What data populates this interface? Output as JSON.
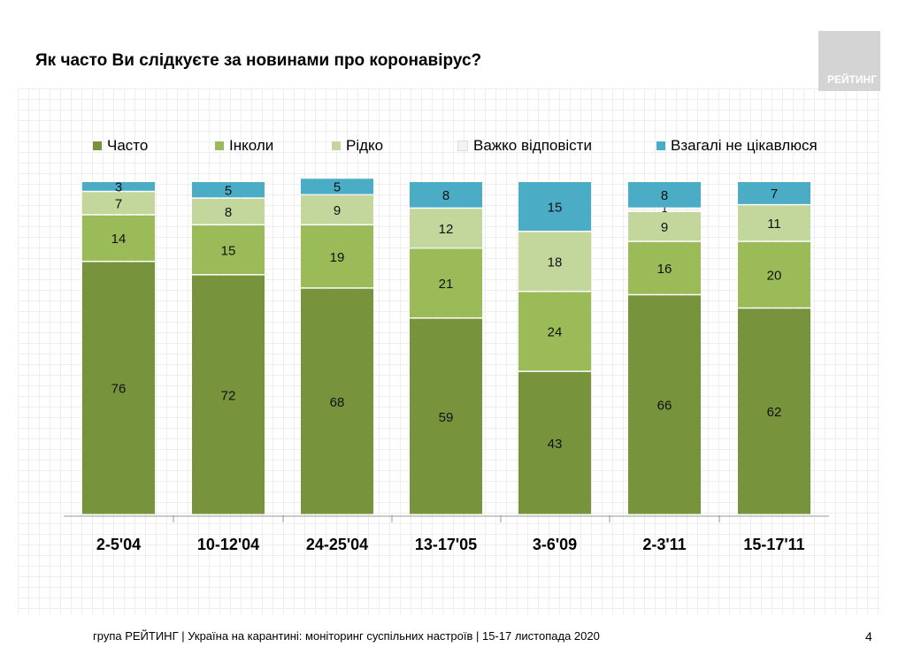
{
  "title": "Як часто Ви слідкуєте за новинами про коронавірус?",
  "logo_text": "РЕЙТИНГ",
  "footer": "група РЕЙТИНГ | Україна на карантині: моніторинг суспільних настроїв | 15-17 листопада 2020",
  "page_number": "4",
  "chart_data": {
    "type": "bar",
    "stacked": true,
    "categories": [
      "2-5'04",
      "10-12'04",
      "24-25'04",
      "13-17'05",
      "3-6'09",
      "2-3'11",
      "15-17'11"
    ],
    "series": [
      {
        "name": "Часто",
        "color": "#77933c",
        "values": [
          76,
          72,
          68,
          59,
          43,
          66,
          62
        ]
      },
      {
        "name": "Інколи",
        "color": "#9bbb59",
        "values": [
          14,
          15,
          19,
          21,
          24,
          16,
          20
        ]
      },
      {
        "name": "Рідко",
        "color": "#c3d69b",
        "values": [
          7,
          8,
          9,
          12,
          18,
          9,
          11
        ]
      },
      {
        "name": "Важко відповісти",
        "color": "#f2f2f2",
        "values": [
          null,
          null,
          null,
          null,
          null,
          1,
          null
        ]
      },
      {
        "name": "Взагалі не цікавлюся",
        "color": "#4bacc6",
        "values": [
          3,
          5,
          5,
          8,
          15,
          8,
          7
        ]
      }
    ],
    "ylim": [
      0,
      100
    ],
    "legend": "top"
  }
}
